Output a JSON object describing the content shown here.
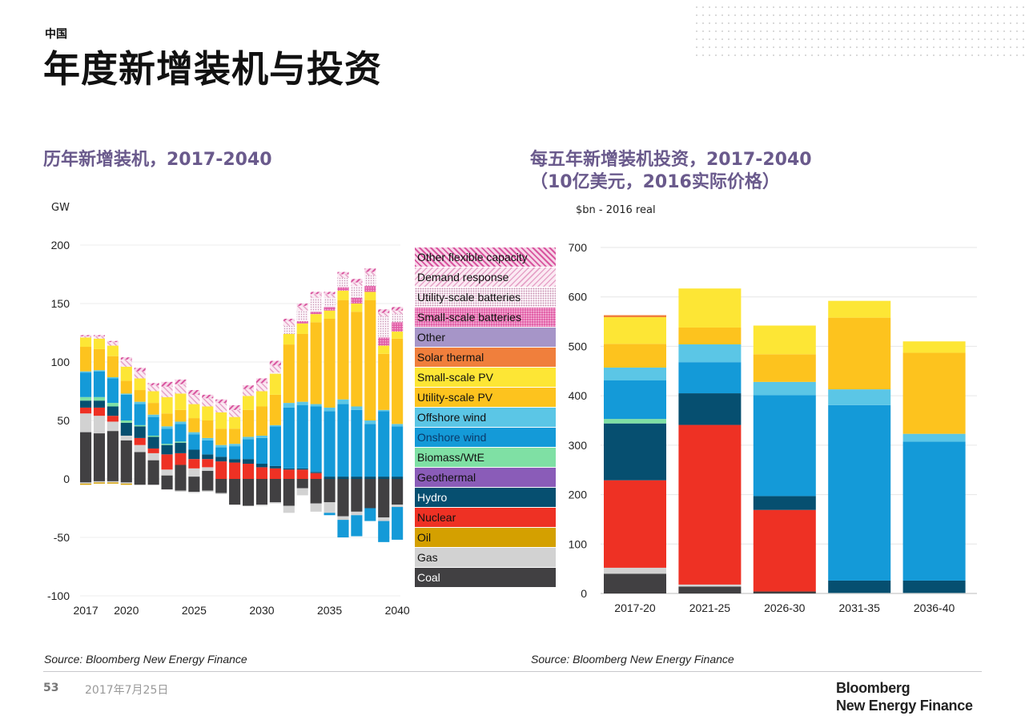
{
  "header": {
    "kicker": "中国",
    "title": "年度新增装机与投资"
  },
  "left_panel": {
    "subtitle": "历年新增装机，2017-2040",
    "unit": "GW",
    "source": "Source: Bloomberg New Energy Finance"
  },
  "right_panel": {
    "subtitle_line1": "每五年新增装机投资，2017-2040",
    "subtitle_line2": "（10亿美元，2016实际价格）",
    "unit": "$bn - 2016 real",
    "source": "Source: Bloomberg New Energy Finance"
  },
  "footer": {
    "page_number": "53",
    "date": "2017年7月25日",
    "logo_line1": "Bloomberg",
    "logo_line2": "New Energy Finance"
  },
  "legend": [
    {
      "name": "Other flexible capacity",
      "color": "#e58fc0",
      "pattern": "hatch-light"
    },
    {
      "name": "Demand response",
      "color": "#f1c4dc",
      "pattern": "hatch"
    },
    {
      "name": "Utility-scale batteries",
      "color": "#f4e6ee",
      "pattern": "dots"
    },
    {
      "name": "Small-scale batteries",
      "color": "#e25fa7",
      "pattern": "dots-dense"
    },
    {
      "name": "Other",
      "color": "#a695c8",
      "pattern": "none"
    },
    {
      "name": "Solar thermal",
      "color": "#f07f3c",
      "pattern": "none"
    },
    {
      "name": "Small-scale PV",
      "color": "#fde635",
      "pattern": "none"
    },
    {
      "name": "Utility-scale PV",
      "color": "#fdc31e",
      "pattern": "none"
    },
    {
      "name": "Offshore wind",
      "color": "#5bc6e6",
      "pattern": "none"
    },
    {
      "name": "Onshore wind",
      "color": "#149ad8",
      "pattern": "none"
    },
    {
      "name": "Biomass/WtE",
      "color": "#7fe0a4",
      "pattern": "none"
    },
    {
      "name": "Geothermal",
      "color": "#8a5cb8",
      "pattern": "none"
    },
    {
      "name": "Hydro",
      "color": "#064f70",
      "pattern": "none"
    },
    {
      "name": "Nuclear",
      "color": "#ee3124",
      "pattern": "none"
    },
    {
      "name": "Oil",
      "color": "#d4a000",
      "pattern": "none"
    },
    {
      "name": "Gas",
      "color": "#d2d2d2",
      "pattern": "none"
    },
    {
      "name": "Coal",
      "color": "#414042",
      "pattern": "none"
    }
  ],
  "chart_data": [
    {
      "type": "bar",
      "stacked": true,
      "title": "历年新增装机，2017-2040",
      "ylabel": "GW",
      "xlabel": "",
      "ylim": [
        -100,
        200
      ],
      "yticks": [
        200,
        150,
        100,
        50,
        0,
        -50,
        -100
      ],
      "xtick_labels": [
        "2017",
        "2020",
        "2025",
        "2030",
        "2035",
        "2040"
      ],
      "grid": true,
      "categories": [
        "2017",
        "2018",
        "2019",
        "2020",
        "2021",
        "2022",
        "2023",
        "2024",
        "2025",
        "2026",
        "2027",
        "2028",
        "2029",
        "2030",
        "2031",
        "2032",
        "2033",
        "2034",
        "2035",
        "2036",
        "2037",
        "2038",
        "2039",
        "2040"
      ],
      "series": [
        {
          "name": "Coal",
          "values": [
            40,
            39,
            41,
            33,
            23,
            16,
            3,
            12,
            2,
            7,
            0,
            0,
            0,
            0,
            0,
            0,
            0,
            0,
            0,
            0,
            0,
            0,
            0,
            0
          ]
        },
        {
          "name": "Gas",
          "values": [
            16,
            15,
            8,
            4,
            6,
            6,
            5,
            0,
            7,
            3,
            0,
            0,
            0,
            0,
            0,
            0,
            0,
            0,
            0,
            0,
            0,
            0,
            0,
            0
          ]
        },
        {
          "name": "Oil",
          "values": [
            0,
            0,
            0,
            0,
            0,
            0,
            0,
            0,
            0,
            0,
            0,
            0,
            0,
            0,
            0,
            0,
            0,
            0,
            0,
            0,
            0,
            0,
            0,
            0
          ]
        },
        {
          "name": "Nuclear",
          "values": [
            5,
            7,
            5,
            0,
            6,
            4,
            13,
            10,
            8,
            7,
            15,
            14,
            13,
            10,
            9,
            8,
            8,
            5,
            0,
            0,
            0,
            0,
            0,
            0
          ]
        },
        {
          "name": "Hydro",
          "values": [
            6,
            6,
            8,
            11,
            10,
            10,
            8,
            9,
            8,
            4,
            4,
            3,
            4,
            3,
            2,
            1,
            1,
            1,
            2,
            2,
            2,
            2,
            2,
            2
          ]
        },
        {
          "name": "Geothermal",
          "values": [
            0,
            0,
            0,
            0,
            0,
            0,
            0,
            0,
            0,
            0,
            0,
            0,
            0,
            0,
            0,
            0,
            0,
            0,
            0,
            0,
            0,
            0,
            0,
            0
          ]
        },
        {
          "name": "Biomass/WtE",
          "values": [
            3,
            3,
            3,
            2,
            1,
            1,
            1,
            1,
            0,
            0,
            0,
            0,
            0,
            0,
            0,
            0,
            0,
            0,
            0,
            0,
            0,
            0,
            0,
            0
          ]
        },
        {
          "name": "Onshore wind",
          "values": [
            21,
            22,
            21,
            22,
            18,
            16,
            13,
            15,
            13,
            12,
            8,
            11,
            17,
            22,
            34,
            52,
            54,
            56,
            56,
            62,
            57,
            45,
            56,
            43
          ]
        },
        {
          "name": "Offshore wind",
          "values": [
            1,
            1,
            1,
            1,
            2,
            2,
            2,
            2,
            2,
            2,
            2,
            2,
            2,
            2,
            1,
            4,
            3,
            2,
            3,
            4,
            3,
            3,
            1,
            2
          ]
        },
        {
          "name": "Utility-scale PV",
          "values": [
            21,
            18,
            18,
            11,
            10,
            10,
            11,
            10,
            12,
            15,
            14,
            13,
            23,
            25,
            26,
            50,
            58,
            70,
            76,
            85,
            81,
            103,
            48,
            73
          ]
        },
        {
          "name": "Small-scale PV",
          "values": [
            8,
            9,
            9,
            12,
            10,
            10,
            14,
            14,
            12,
            12,
            14,
            10,
            12,
            13,
            18,
            9,
            9,
            7,
            7,
            8,
            7,
            7,
            7,
            6
          ]
        },
        {
          "name": "Solar thermal",
          "values": [
            0,
            0,
            0,
            0,
            0,
            0,
            0,
            0,
            0,
            0,
            0,
            0,
            0,
            0,
            0,
            0,
            0,
            0,
            0,
            0,
            0,
            0,
            0,
            0
          ]
        },
        {
          "name": "Other",
          "values": [
            0,
            0,
            0,
            0,
            0,
            0,
            0,
            0,
            0,
            0,
            0,
            0,
            0,
            0,
            0,
            0,
            0,
            0,
            0,
            0,
            0,
            0,
            0,
            0
          ]
        },
        {
          "name": "Small-scale batteries",
          "values": [
            0,
            0,
            0,
            0,
            0,
            0,
            0,
            0,
            0,
            0,
            0,
            0,
            0,
            0,
            0,
            0,
            2,
            2,
            3,
            3,
            5,
            5,
            7,
            8
          ]
        },
        {
          "name": "Utility-scale batteries",
          "values": [
            0,
            0,
            0,
            0,
            0,
            0,
            0,
            0,
            0,
            0,
            0,
            0,
            0,
            0,
            1,
            7,
            9,
            12,
            8,
            8,
            10,
            9,
            18,
            7
          ]
        },
        {
          "name": "Demand response",
          "values": [
            1,
            2,
            3,
            6,
            6,
            5,
            9,
            8,
            8,
            7,
            8,
            6,
            6,
            7,
            6,
            4,
            4,
            3,
            3,
            3,
            3,
            3,
            3,
            3
          ]
        },
        {
          "name": "Other flexible capacity",
          "values": [
            1,
            1,
            1,
            2,
            3,
            2,
            4,
            4,
            4,
            3,
            3,
            4,
            3,
            4,
            4,
            2,
            2,
            2,
            2,
            2,
            3,
            3,
            3,
            3
          ]
        }
      ],
      "negative_series": [
        {
          "name": "Coal",
          "values": [
            -3,
            -2,
            -2,
            -3,
            -5,
            -5,
            -9,
            -10,
            -11,
            -10,
            -12,
            -22,
            -23,
            -22,
            -20,
            -23,
            -8,
            -21,
            -20,
            -32,
            -28,
            -25,
            -33,
            -22
          ]
        },
        {
          "name": "Gas",
          "values": [
            -1,
            -1,
            -1,
            -1,
            0,
            0,
            0,
            -1,
            -1,
            -1,
            -1,
            0,
            0,
            -1,
            -1,
            -6,
            -6,
            -7,
            -9,
            -3,
            -3,
            0,
            -3,
            -2
          ]
        },
        {
          "name": "Oil",
          "values": [
            -1,
            -1,
            -1,
            -1,
            0,
            0,
            0,
            0,
            0,
            0,
            0,
            0,
            0,
            0,
            0,
            0,
            0,
            0,
            0,
            0,
            0,
            0,
            0,
            0
          ]
        },
        {
          "name": "Onshore wind",
          "values": [
            0,
            0,
            0,
            0,
            0,
            0,
            0,
            0,
            0,
            0,
            0,
            0,
            0,
            0,
            0,
            0,
            0,
            0,
            -2,
            -15,
            -18,
            -11,
            -18,
            -28
          ]
        }
      ]
    },
    {
      "type": "bar",
      "stacked": true,
      "title": "每五年新增装机投资，2017-2040（10亿美元，2016实际价格）",
      "ylabel": "$bn - 2016 real",
      "xlabel": "",
      "ylim": [
        0,
        700
      ],
      "yticks": [
        700,
        600,
        500,
        400,
        300,
        200,
        100,
        0
      ],
      "grid": true,
      "categories": [
        "2017-20",
        "2021-25",
        "2026-30",
        "2031-35",
        "2036-40"
      ],
      "series": [
        {
          "name": "Coal",
          "values": [
            40,
            14,
            4,
            0,
            0
          ]
        },
        {
          "name": "Gas",
          "values": [
            12,
            4,
            0,
            1,
            1
          ]
        },
        {
          "name": "Nuclear",
          "values": [
            177,
            323,
            165,
            0,
            0
          ]
        },
        {
          "name": "Hydro",
          "values": [
            115,
            64,
            28,
            25,
            25
          ]
        },
        {
          "name": "Biomass/WtE",
          "values": [
            9,
            0,
            0,
            0,
            0
          ]
        },
        {
          "name": "Onshore wind",
          "values": [
            78,
            63,
            204,
            355,
            281
          ]
        },
        {
          "name": "Offshore wind",
          "values": [
            26,
            36,
            27,
            32,
            16
          ]
        },
        {
          "name": "Utility-scale PV",
          "values": [
            48,
            34,
            56,
            145,
            164
          ]
        },
        {
          "name": "Small-scale PV",
          "values": [
            54,
            79,
            58,
            34,
            23
          ]
        },
        {
          "name": "Solar thermal",
          "values": [
            4,
            0,
            0,
            0,
            0
          ]
        }
      ]
    }
  ]
}
